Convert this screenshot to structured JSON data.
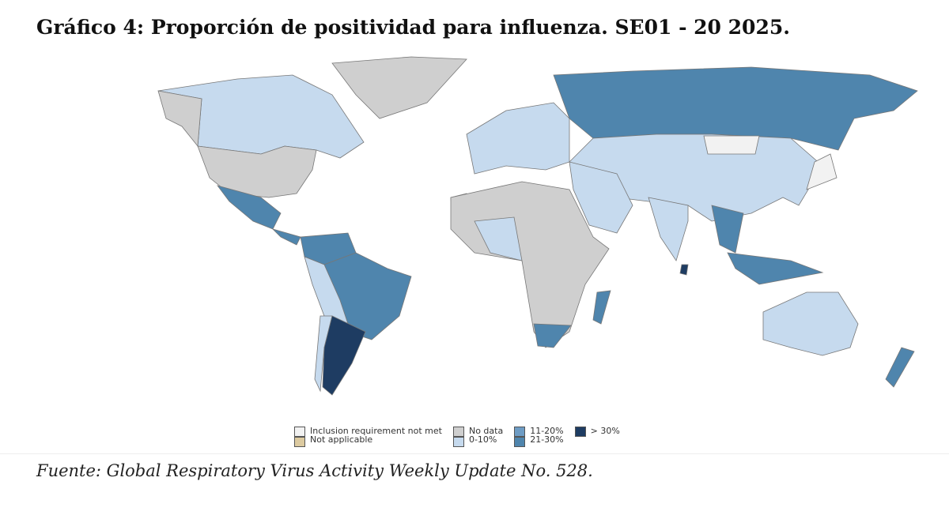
{
  "title": "Gráfico 4: Proporción de positividad para influenza. SE01 - 20 2025.",
  "source": "Fuente: Global Respiratory Virus Activity Weekly Update No. 528.",
  "legend": {
    "items": [
      {
        "key": "not_met",
        "label": "Inclusion requirement not met",
        "color": "#f2f2f2"
      },
      {
        "key": "na",
        "label": "Not applicable",
        "color": "#dccaa0"
      },
      {
        "key": "nodata",
        "label": "No data",
        "color": "#cfcfcf"
      },
      {
        "key": "c0_10",
        "label": "0-10%",
        "color": "#c6daee"
      },
      {
        "key": "c11_20",
        "label": "11-20%",
        "color": "#6e9cc4"
      },
      {
        "key": "c21_30",
        "label": "21-30%",
        "color": "#4f85ad"
      },
      {
        "key": "c30",
        "label": "> 30%",
        "color": "#1e3c62"
      }
    ]
  },
  "regions": [
    {
      "name": "Canada",
      "category": "c0_10"
    },
    {
      "name": "Alaska",
      "category": "nodata"
    },
    {
      "name": "United States",
      "category": "nodata"
    },
    {
      "name": "Greenland",
      "category": "nodata"
    },
    {
      "name": "Mexico",
      "category": "c21_30"
    },
    {
      "name": "Central America",
      "category": "c21_30"
    },
    {
      "name": "Colombia-Venezuela",
      "category": "c21_30"
    },
    {
      "name": "Brazil",
      "category": "c21_30"
    },
    {
      "name": "Peru-Bolivia",
      "category": "c0_10"
    },
    {
      "name": "Chile",
      "category": "c0_10"
    },
    {
      "name": "Argentina",
      "category": "c30"
    },
    {
      "name": "Western Sahara",
      "category": "na"
    },
    {
      "name": "Africa",
      "category": "nodata"
    },
    {
      "name": "West Africa",
      "category": "c0_10"
    },
    {
      "name": "South Africa",
      "category": "c21_30"
    },
    {
      "name": "Madagascar",
      "category": "c21_30"
    },
    {
      "name": "Europe",
      "category": "c0_10"
    },
    {
      "name": "Russia",
      "category": "c21_30"
    },
    {
      "name": "Central Asia-China",
      "category": "c0_10"
    },
    {
      "name": "Mongolia",
      "category": "not_met"
    },
    {
      "name": "Middle East",
      "category": "c0_10"
    },
    {
      "name": "India",
      "category": "c0_10"
    },
    {
      "name": "Southeast Asia",
      "category": "c21_30"
    },
    {
      "name": "Indonesia",
      "category": "c21_30"
    },
    {
      "name": "Japan",
      "category": "not_met"
    },
    {
      "name": "Australia",
      "category": "c0_10"
    },
    {
      "name": "New Zealand",
      "category": "c21_30"
    },
    {
      "name": "Sri Lanka",
      "category": "c30"
    }
  ]
}
